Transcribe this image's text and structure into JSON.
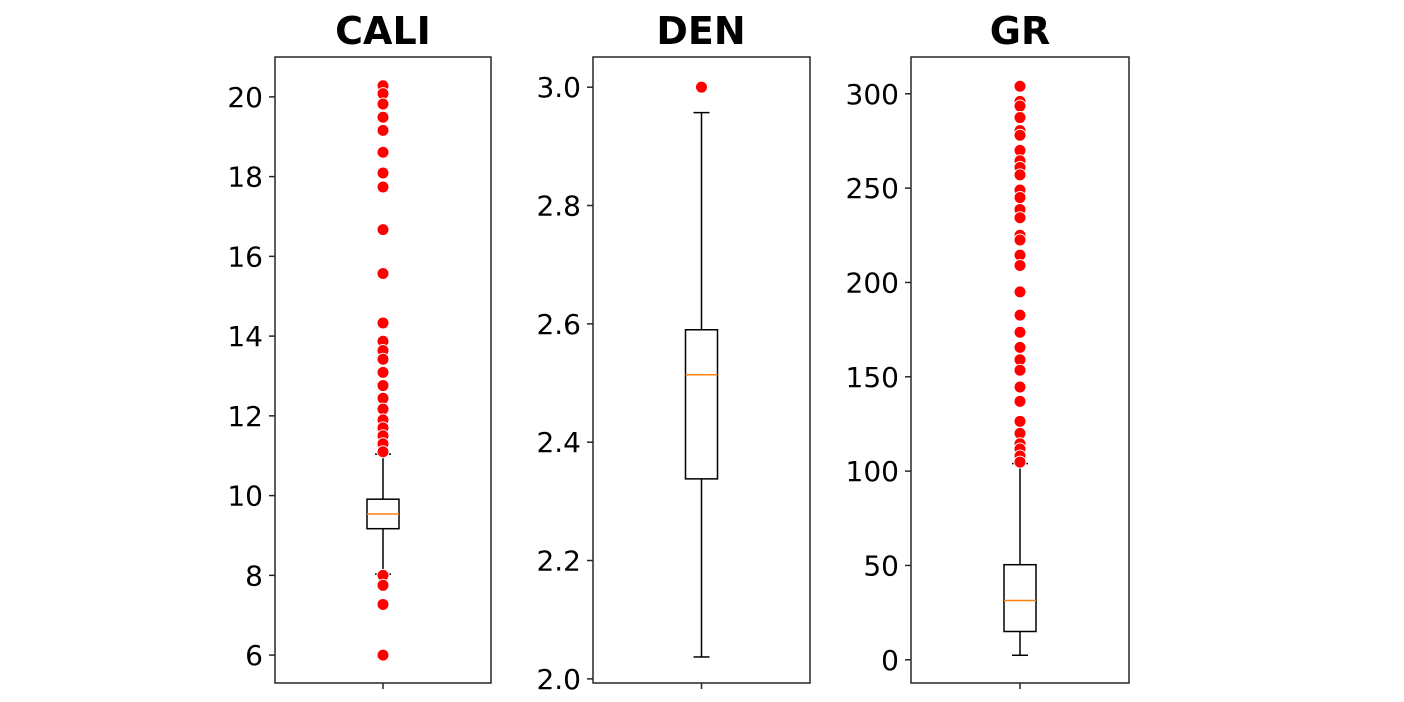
{
  "chart_data": [
    {
      "type": "boxplot",
      "title": "CALI",
      "ylim": [
        5.3,
        21.0
      ],
      "yticks": [
        6,
        8,
        10,
        12,
        14,
        16,
        18,
        20
      ],
      "tick_labels": [
        "6",
        "8",
        "10",
        "12",
        "14",
        "16",
        "18",
        "20"
      ],
      "box": {
        "whisker_low": 8.03,
        "q1": 9.17,
        "median": 9.54,
        "q3": 9.91,
        "whisker_high": 11.04
      },
      "outliers": [
        20.28,
        20.08,
        19.82,
        19.49,
        19.16,
        18.61,
        18.09,
        17.74,
        16.67,
        15.57,
        14.33,
        13.87,
        13.64,
        13.42,
        13.09,
        12.76,
        12.44,
        12.17,
        11.9,
        11.7,
        11.5,
        11.3,
        11.1,
        8.0,
        7.75,
        7.27,
        6.0
      ],
      "grid": false
    },
    {
      "type": "boxplot",
      "title": "DEN",
      "ylim": [
        1.993,
        3.051
      ],
      "yticks": [
        2.0,
        2.2,
        2.4,
        2.6,
        2.8,
        3.0
      ],
      "tick_labels": [
        "2.0",
        "2.2",
        "2.4",
        "2.6",
        "2.8",
        "3.0"
      ],
      "box": {
        "whisker_low": 2.037,
        "q1": 2.338,
        "median": 2.514,
        "q3": 2.59,
        "whisker_high": 2.957
      },
      "outliers": [
        3.0
      ],
      "grid": false
    },
    {
      "type": "boxplot",
      "title": "GR",
      "ylim": [
        -12.3,
        319.5
      ],
      "yticks": [
        0,
        50,
        100,
        150,
        200,
        250,
        300
      ],
      "tick_labels": [
        "0",
        "50",
        "100",
        "150",
        "200",
        "250",
        "300"
      ],
      "box": {
        "whisker_low": 2.4,
        "q1": 15,
        "median": 31.4,
        "q3": 50.4,
        "whisker_high": 104
      },
      "outliers": [
        304,
        296,
        293.5,
        287.4,
        280.5,
        278,
        270,
        264.5,
        261,
        257,
        249,
        245,
        238.7,
        234.3,
        225,
        222.5,
        214.5,
        209,
        195,
        182.7,
        173.6,
        165.6,
        159,
        153.5,
        144.6,
        137,
        126.4,
        120,
        114.5,
        111.7,
        108,
        104.8
      ],
      "grid": false
    }
  ],
  "colors": {
    "outlier": "#ff0000",
    "median": "#ff7f0e",
    "box": "#000000",
    "axes": "#262626"
  }
}
